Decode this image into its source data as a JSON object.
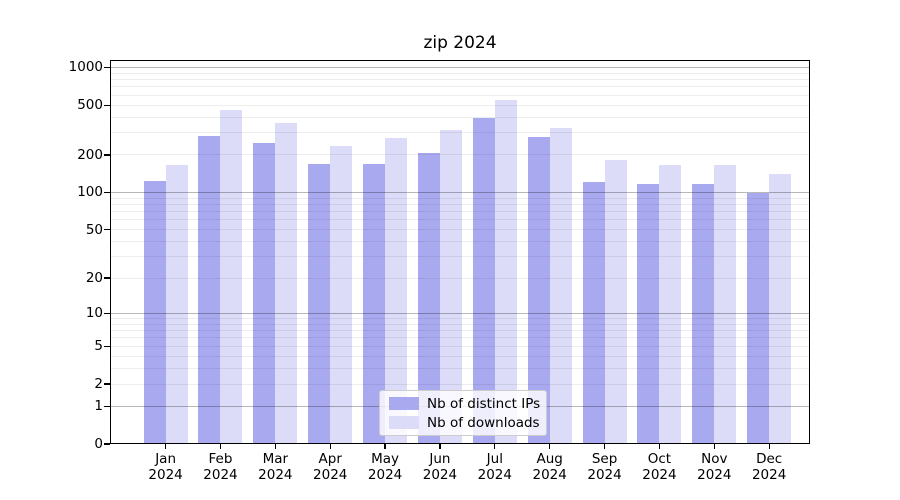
{
  "chart_data": {
    "type": "bar",
    "title": "zip 2024",
    "scale": "log1p",
    "grid": "both",
    "legend_position": "lower center",
    "categories": [
      {
        "month": "Jan",
        "year": "2024"
      },
      {
        "month": "Feb",
        "year": "2024"
      },
      {
        "month": "Mar",
        "year": "2024"
      },
      {
        "month": "Apr",
        "year": "2024"
      },
      {
        "month": "May",
        "year": "2024"
      },
      {
        "month": "Jun",
        "year": "2024"
      },
      {
        "month": "Jul",
        "year": "2024"
      },
      {
        "month": "Aug",
        "year": "2024"
      },
      {
        "month": "Sep",
        "year": "2024"
      },
      {
        "month": "Oct",
        "year": "2024"
      },
      {
        "month": "Nov",
        "year": "2024"
      },
      {
        "month": "Dec",
        "year": "2024"
      }
    ],
    "series": [
      {
        "name": "Nb of distinct IPs",
        "color": "#a9a9f0",
        "values": [
          124,
          286,
          248,
          168,
          170,
          209,
          392,
          277,
          121,
          116,
          118,
          99
        ]
      },
      {
        "name": "Nb of downloads",
        "color": "#dcdcf8",
        "values": [
          165,
          459,
          358,
          238,
          274,
          315,
          546,
          327,
          184,
          166,
          167,
          140
        ]
      }
    ],
    "yticks_labeled": [
      0,
      1,
      2,
      5,
      10,
      20,
      50,
      100,
      200,
      500,
      1000
    ],
    "ytick_majors": [
      1,
      10,
      100,
      1000
    ],
    "ylim": [
      0,
      1147
    ]
  },
  "colors": {
    "axis": "#000000",
    "grid_major": "#b8b8b8",
    "grid_minor": "#ededed",
    "background": "#ffffff"
  }
}
